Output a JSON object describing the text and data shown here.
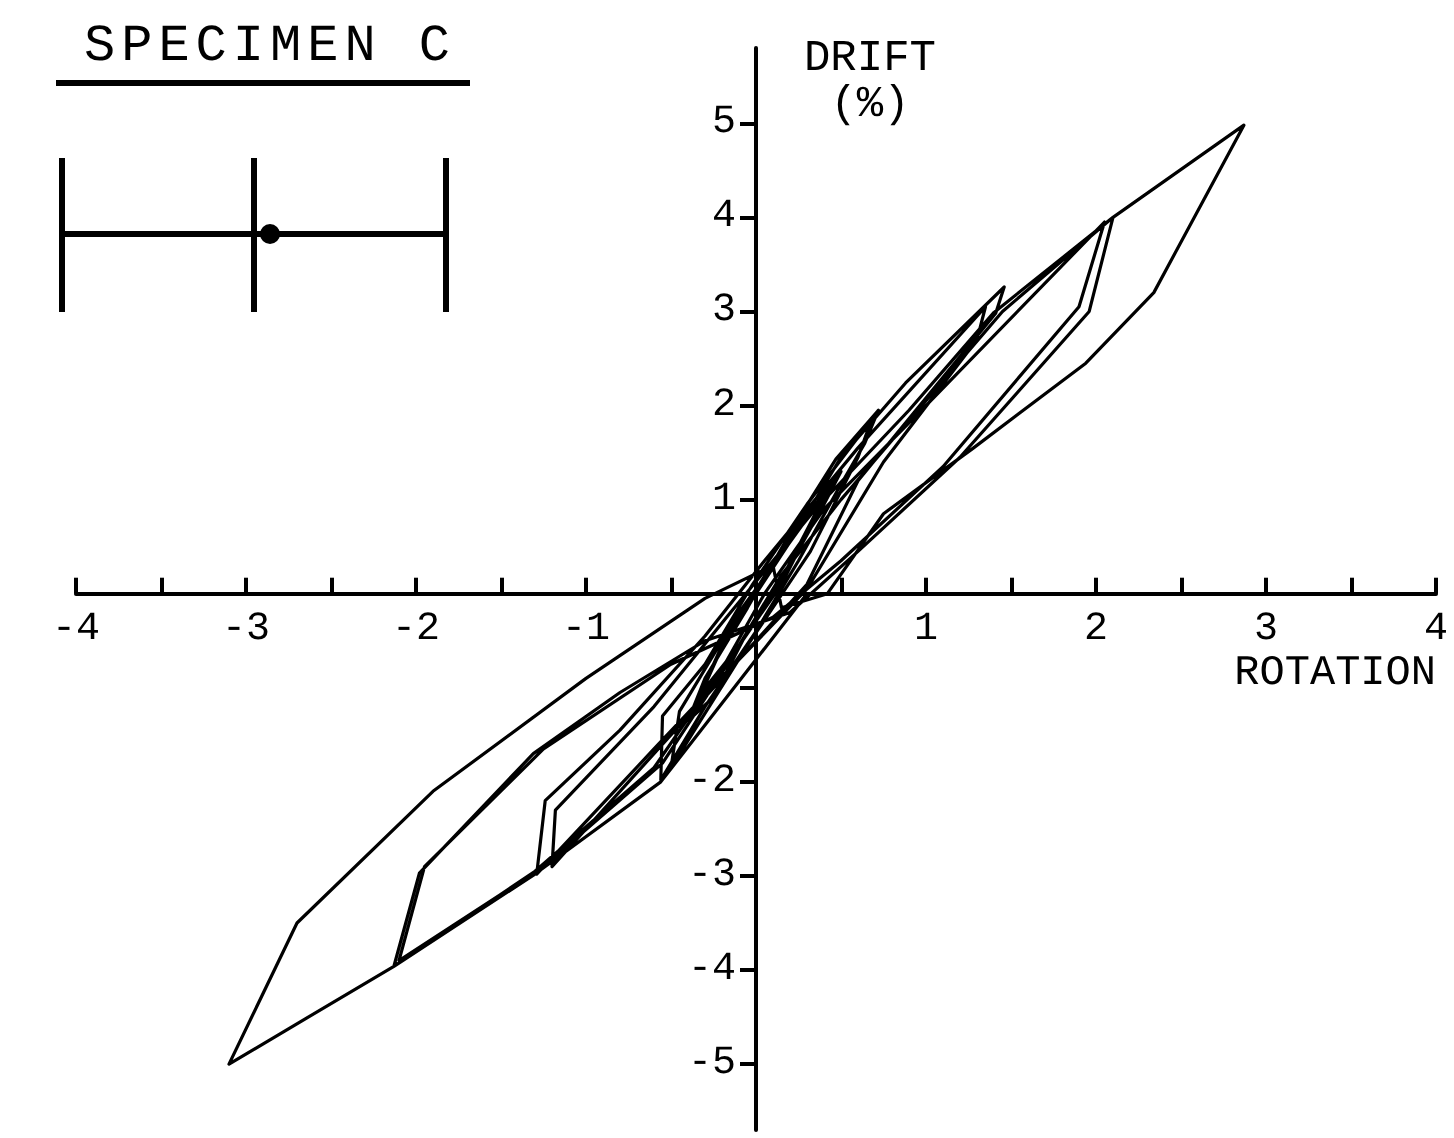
{
  "chart_data": {
    "type": "line",
    "title": "SPECIMEN C",
    "xlabel": "ROTATION",
    "ylabel": "DRIFT\n(%)",
    "color": "#000000",
    "xlim": [
      -4,
      4
    ],
    "ylim": [
      -5.7,
      5.8
    ],
    "xticks": [
      -4,
      {
        "value": -3.5,
        "label": null
      },
      -3,
      {
        "value": -2.5,
        "label": null
      },
      -2,
      {
        "value": -1.5,
        "label": null
      },
      -1,
      {
        "value": -0.5,
        "label": null
      },
      {
        "value": 0.5,
        "label": null
      },
      1,
      {
        "value": 1.5,
        "label": null
      },
      2,
      {
        "value": 2.5,
        "label": null
      },
      3,
      {
        "value": 3.5,
        "label": null
      },
      4
    ],
    "yticks": [
      -5,
      -4,
      -3,
      -2,
      {
        "value": -1,
        "label": null
      },
      1,
      2,
      3,
      4,
      5
    ],
    "x": [
      0,
      0.2,
      0.42,
      0.32,
      0.12,
      -0.1,
      -0.32,
      -0.22,
      0,
      0.22,
      0.45,
      0.36,
      0.15,
      -0.08,
      -0.35,
      -0.2,
      0.02,
      0.3,
      0.5,
      0.4,
      0.2,
      -0.05,
      -0.25,
      -0.4,
      -0.3,
      -0.05,
      0.25,
      0.47,
      0.72,
      0.64,
      0.48,
      0.25,
      0,
      -0.3,
      -0.56,
      -0.55,
      -0.3,
      -0.02,
      0.3,
      0.68,
      0.6,
      0.32,
      -0.05,
      -0.5,
      -0.45,
      -0.1,
      0.2,
      0.5,
      0.88,
      1.46,
      1.41,
      1.1,
      0.6,
      0.3,
      0,
      -0.6,
      -1.29,
      -1.24,
      -0.8,
      -0.3,
      0.05,
      0.6,
      1.35,
      1.3,
      0.75,
      0.3,
      -0.1,
      -1.2,
      -1.18,
      -0.6,
      -0.15,
      0.35,
      0.9,
      1.4,
      2.1,
      1.96,
      1.2,
      0.6,
      0.2,
      -0.3,
      -0.8,
      -1.31,
      -1.98,
      -2.13,
      -1.3,
      -0.6,
      -0.2,
      0.05,
      0.4,
      1.0,
      2.05,
      1.9,
      1.1,
      0.5,
      0.1,
      -0.5,
      -1.25,
      -1.95,
      -2.1,
      -1.25,
      -0.55,
      -0.15,
      0.15,
      0.5,
      1.45,
      2.1,
      2.87,
      2.34,
      1.94,
      1.28,
      0.75,
      0.42,
      0.15,
      0.1,
      -0.3,
      -1.0,
      -1.9,
      -2.7,
      -3.1,
      -2.13,
      -1.3,
      -0.56,
      0,
      0.3
    ],
    "values": [
      0,
      0.55,
      1.1,
      0.75,
      0.05,
      -0.55,
      -1.05,
      -0.65,
      0.05,
      0.6,
      1.2,
      0.85,
      0.1,
      -0.5,
      -1.15,
      -0.55,
      0.1,
      0.9,
      1.3,
      0.95,
      0.3,
      -0.4,
      -1.1,
      -1.35,
      -0.9,
      -0.15,
      0.8,
      1.43,
      1.95,
      1.6,
      1.1,
      0.35,
      -0.4,
      -1.2,
      -1.98,
      -1.3,
      -0.75,
      0.1,
      0.95,
      1.85,
      1.45,
      0.45,
      -0.55,
      -1.85,
      -1.25,
      -0.2,
      0.55,
      1.45,
      2.24,
      3.26,
      2.98,
      2.3,
      1.2,
      0.1,
      -0.5,
      -1.65,
      -2.98,
      -2.2,
      -1.45,
      -0.45,
      0.35,
      1.55,
      3.05,
      2.7,
      1.4,
      0.05,
      -0.7,
      -2.9,
      -2.3,
      -1.2,
      -0.2,
      0.9,
      1.95,
      2.99,
      4.0,
      3.0,
      1.45,
      0.45,
      -0.2,
      -0.5,
      -1.05,
      -1.7,
      -2.97,
      -3.96,
      -2.95,
      -1.85,
      -0.8,
      0,
      0.9,
      2.0,
      3.95,
      3.05,
      1.35,
      0.35,
      -0.25,
      -0.75,
      -1.65,
      -2.9,
      -3.9,
      -2.9,
      -1.8,
      -0.7,
      0.2,
      1.0,
      3.0,
      4.0,
      4.98,
      3.2,
      2.45,
      1.55,
      0.85,
      0,
      -0.15,
      0.3,
      -0.05,
      -0.9,
      -2.1,
      -3.5,
      -5.0,
      -3.96,
      -2.98,
      -2.0,
      -0.7,
      0
    ]
  }
}
